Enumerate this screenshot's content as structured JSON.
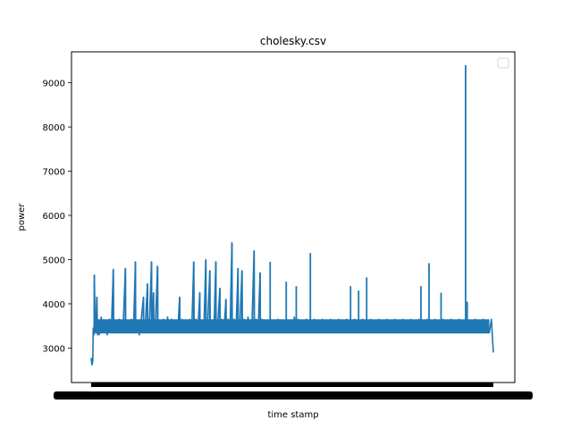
{
  "chart_data": {
    "type": "line",
    "title": "cholesky.csv",
    "xlabel": "time stamp",
    "ylabel": "power",
    "ylim": [
      2220,
      9700
    ],
    "yticks": [
      3000,
      4000,
      5000,
      6000,
      7000,
      8000,
      9000
    ],
    "grid": false,
    "legend": {
      "placement": "top-right",
      "entries": []
    },
    "x_tick_labels_note": "dense overlapping timestamp labels, illegible",
    "series": [
      {
        "color": "#1f77b4",
        "points": [
          [
            0.0,
            2780
          ],
          [
            0.002,
            2620
          ],
          [
            0.004,
            2700
          ],
          [
            0.005,
            3450
          ],
          [
            0.007,
            3300
          ],
          [
            0.008,
            4650
          ],
          [
            0.01,
            3350
          ],
          [
            0.012,
            3500
          ],
          [
            0.014,
            4150
          ],
          [
            0.016,
            3300
          ],
          [
            0.018,
            3550
          ],
          [
            0.02,
            3300
          ],
          [
            0.025,
            3700
          ],
          [
            0.03,
            3350
          ],
          [
            0.035,
            3600
          ],
          [
            0.04,
            3300
          ],
          [
            0.045,
            3650
          ],
          [
            0.05,
            3350
          ],
          [
            0.055,
            4780
          ],
          [
            0.056,
            3400
          ],
          [
            0.06,
            3600
          ],
          [
            0.065,
            3350
          ],
          [
            0.07,
            3650
          ],
          [
            0.075,
            3350
          ],
          [
            0.08,
            3600
          ],
          [
            0.085,
            4800
          ],
          [
            0.086,
            3400
          ],
          [
            0.09,
            3600
          ],
          [
            0.095,
            3350
          ],
          [
            0.1,
            3650
          ],
          [
            0.105,
            3350
          ],
          [
            0.11,
            4950
          ],
          [
            0.111,
            3400
          ],
          [
            0.115,
            3600
          ],
          [
            0.12,
            3300
          ],
          [
            0.125,
            3700
          ],
          [
            0.13,
            4150
          ],
          [
            0.131,
            3400
          ],
          [
            0.135,
            3600
          ],
          [
            0.14,
            4450
          ],
          [
            0.141,
            3400
          ],
          [
            0.145,
            3650
          ],
          [
            0.15,
            4950
          ],
          [
            0.151,
            3400
          ],
          [
            0.155,
            4250
          ],
          [
            0.156,
            3400
          ],
          [
            0.16,
            3600
          ],
          [
            0.165,
            4850
          ],
          [
            0.166,
            3450
          ],
          [
            0.17,
            3600
          ],
          [
            0.175,
            3350
          ],
          [
            0.18,
            3650
          ],
          [
            0.185,
            3350
          ],
          [
            0.19,
            3700
          ],
          [
            0.195,
            3350
          ],
          [
            0.2,
            3650
          ],
          [
            0.205,
            3350
          ],
          [
            0.21,
            3600
          ],
          [
            0.215,
            3350
          ],
          [
            0.22,
            4150
          ],
          [
            0.221,
            3400
          ],
          [
            0.225,
            3650
          ],
          [
            0.23,
            3350
          ],
          [
            0.235,
            3600
          ],
          [
            0.24,
            3350
          ],
          [
            0.245,
            3650
          ],
          [
            0.25,
            3400
          ],
          [
            0.255,
            4950
          ],
          [
            0.256,
            3400
          ],
          [
            0.26,
            3650
          ],
          [
            0.265,
            3350
          ],
          [
            0.27,
            4250
          ],
          [
            0.271,
            3400
          ],
          [
            0.275,
            3600
          ],
          [
            0.28,
            3350
          ],
          [
            0.285,
            5000
          ],
          [
            0.286,
            3400
          ],
          [
            0.29,
            3650
          ],
          [
            0.295,
            4750
          ],
          [
            0.296,
            3450
          ],
          [
            0.3,
            3600
          ],
          [
            0.305,
            3350
          ],
          [
            0.31,
            4950
          ],
          [
            0.311,
            3400
          ],
          [
            0.315,
            3600
          ],
          [
            0.32,
            4350
          ],
          [
            0.321,
            3400
          ],
          [
            0.325,
            3650
          ],
          [
            0.33,
            3350
          ],
          [
            0.335,
            4100
          ],
          [
            0.336,
            3400
          ],
          [
            0.34,
            3650
          ],
          [
            0.345,
            3350
          ],
          [
            0.35,
            5380
          ],
          [
            0.351,
            3450
          ],
          [
            0.355,
            3650
          ],
          [
            0.36,
            3350
          ],
          [
            0.365,
            4800
          ],
          [
            0.366,
            3400
          ],
          [
            0.37,
            3600
          ],
          [
            0.375,
            4750
          ],
          [
            0.376,
            3400
          ],
          [
            0.38,
            3650
          ],
          [
            0.385,
            3350
          ],
          [
            0.39,
            3700
          ],
          [
            0.395,
            3350
          ],
          [
            0.4,
            3600
          ],
          [
            0.405,
            5200
          ],
          [
            0.406,
            3450
          ],
          [
            0.41,
            3650
          ],
          [
            0.415,
            3350
          ],
          [
            0.42,
            4700
          ],
          [
            0.421,
            3400
          ],
          [
            0.425,
            3650
          ],
          [
            0.43,
            3350
          ],
          [
            0.435,
            3600
          ],
          [
            0.44,
            3350
          ],
          [
            0.445,
            3650
          ],
          [
            0.45,
            3350
          ],
          [
            0.455,
            3600
          ],
          [
            0.46,
            3350
          ],
          [
            0.465,
            3650
          ],
          [
            0.47,
            3350
          ],
          [
            0.475,
            3600
          ],
          [
            0.48,
            3350
          ],
          [
            0.485,
            3650
          ],
          [
            0.49,
            3350
          ],
          [
            0.495,
            3600
          ],
          [
            0.5,
            3350
          ],
          [
            0.505,
            3700
          ],
          [
            0.51,
            3350
          ],
          [
            0.515,
            3650
          ],
          [
            0.52,
            3400
          ],
          [
            0.525,
            3600
          ],
          [
            0.53,
            3350
          ],
          [
            0.535,
            3650
          ],
          [
            0.54,
            3350
          ],
          [
            0.545,
            3600
          ],
          [
            0.55,
            3350
          ],
          [
            0.555,
            3650
          ],
          [
            0.56,
            3350
          ],
          [
            0.565,
            3600
          ],
          [
            0.57,
            3400
          ],
          [
            0.575,
            3650
          ],
          [
            0.58,
            3350
          ],
          [
            0.585,
            3600
          ],
          [
            0.59,
            3350
          ],
          [
            0.595,
            3650
          ],
          [
            0.6,
            3350
          ],
          [
            0.605,
            3600
          ],
          [
            0.61,
            3400
          ],
          [
            0.615,
            3650
          ],
          [
            0.62,
            3350
          ],
          [
            0.625,
            3600
          ],
          [
            0.63,
            3350
          ],
          [
            0.635,
            3650
          ],
          [
            0.64,
            3350
          ],
          [
            0.645,
            3600
          ],
          [
            0.65,
            3400
          ],
          [
            0.655,
            3650
          ],
          [
            0.66,
            3350
          ],
          [
            0.665,
            3600
          ],
          [
            0.67,
            3350
          ],
          [
            0.675,
            3650
          ],
          [
            0.68,
            3350
          ],
          [
            0.685,
            3600
          ],
          [
            0.69,
            3400
          ],
          [
            0.695,
            3650
          ],
          [
            0.7,
            3350
          ],
          [
            0.705,
            3600
          ],
          [
            0.71,
            3350
          ],
          [
            0.715,
            3650
          ],
          [
            0.72,
            3350
          ],
          [
            0.725,
            3600
          ],
          [
            0.73,
            3400
          ],
          [
            0.735,
            3650
          ],
          [
            0.74,
            3350
          ],
          [
            0.745,
            3600
          ],
          [
            0.75,
            3350
          ],
          [
            0.755,
            3650
          ],
          [
            0.76,
            3350
          ],
          [
            0.765,
            3600
          ],
          [
            0.77,
            3400
          ],
          [
            0.775,
            3650
          ],
          [
            0.78,
            3350
          ],
          [
            0.785,
            3600
          ],
          [
            0.79,
            3350
          ],
          [
            0.795,
            3650
          ],
          [
            0.8,
            3350
          ],
          [
            0.805,
            3600
          ],
          [
            0.81,
            3400
          ],
          [
            0.815,
            3650
          ],
          [
            0.82,
            3350
          ],
          [
            0.825,
            3600
          ],
          [
            0.83,
            3350
          ],
          [
            0.835,
            3650
          ],
          [
            0.84,
            3350
          ],
          [
            0.845,
            3600
          ],
          [
            0.85,
            3400
          ],
          [
            0.855,
            3650
          ],
          [
            0.86,
            3350
          ],
          [
            0.865,
            3600
          ],
          [
            0.87,
            3350
          ],
          [
            0.875,
            3650
          ],
          [
            0.88,
            3350
          ],
          [
            0.885,
            3600
          ],
          [
            0.89,
            3400
          ],
          [
            0.895,
            3650
          ],
          [
            0.9,
            3350
          ],
          [
            0.905,
            3600
          ],
          [
            0.91,
            3350
          ],
          [
            0.915,
            3650
          ],
          [
            0.92,
            3350
          ],
          [
            0.925,
            3600
          ],
          [
            0.93,
            3400
          ],
          [
            0.935,
            3650
          ],
          [
            0.94,
            3350
          ],
          [
            0.945,
            3600
          ],
          [
            0.95,
            3350
          ],
          [
            0.955,
            3650
          ],
          [
            0.96,
            3350
          ],
          [
            0.965,
            3600
          ],
          [
            0.97,
            3400
          ],
          [
            0.975,
            3650
          ],
          [
            0.98,
            3350
          ],
          [
            0.985,
            3600
          ],
          [
            0.99,
            3350
          ],
          [
            0.995,
            3650
          ],
          [
            1.0,
            2900
          ]
        ]
      }
    ]
  }
}
